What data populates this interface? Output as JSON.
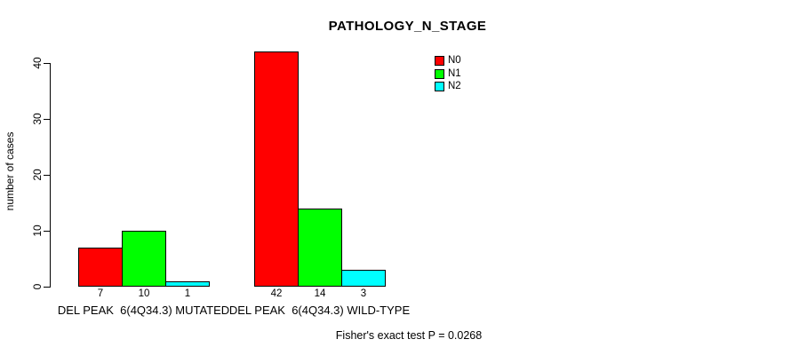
{
  "chart_data": {
    "type": "bar",
    "title": "PATHOLOGY_N_STAGE",
    "xlabel": "",
    "ylabel": "number of cases",
    "ylim": [
      0,
      42
    ],
    "yticks": [
      0,
      10,
      20,
      30,
      40
    ],
    "grid": false,
    "legend_position": "top-right",
    "bar_borders": "#000000",
    "show_bar_values": true,
    "categories": [
      "DEL PEAK  6(4Q34.3) MUTATED",
      "DEL PEAK  6(4Q34.3) WILD-TYPE"
    ],
    "series": [
      {
        "name": "N0",
        "color": "#ff0000",
        "values": [
          7,
          42
        ]
      },
      {
        "name": "N1",
        "color": "#00ff00",
        "values": [
          10,
          14
        ]
      },
      {
        "name": "N2",
        "color": "#00ffff",
        "values": [
          1,
          3
        ]
      }
    ],
    "annotation": "Fisher's exact test P = 0.0268"
  },
  "colors": {
    "background": "#ffffff",
    "axis": "#000000",
    "text": "#000000"
  }
}
